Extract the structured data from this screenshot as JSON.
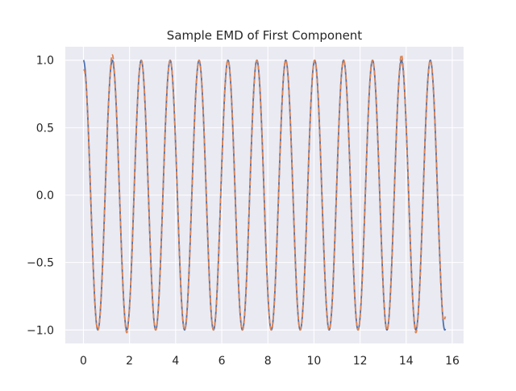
{
  "chart_data": {
    "type": "line",
    "title": "Sample EMD of First Component",
    "xlabel": "",
    "ylabel": "",
    "xlim": [
      -0.785,
      16.49
    ],
    "ylim": [
      -1.1,
      1.1
    ],
    "grid": true,
    "legend": "none",
    "x_ticks": [
      0,
      2,
      4,
      6,
      8,
      10,
      12,
      14,
      16
    ],
    "x_tick_labels": [
      "0",
      "2",
      "4",
      "6",
      "8",
      "10",
      "12",
      "14",
      "16"
    ],
    "y_ticks": [
      -1.0,
      -0.5,
      0.0,
      0.5,
      1.0
    ],
    "y_tick_labels": [
      "−1.0",
      "−0.5",
      "0.0",
      "0.5",
      "1.0"
    ],
    "series": [
      {
        "color": "#4c72b0",
        "style": "solid",
        "function": "cos",
        "amplitude": 1.0,
        "period": 1.254,
        "phase": 0.0,
        "x_range": [
          0,
          15.7
        ]
      },
      {
        "color": "#dd8452",
        "style": "dashed",
        "function": "cos",
        "amplitude": 1.0,
        "period": 1.254,
        "phase": 0.0,
        "x_range": [
          0,
          15.7
        ],
        "overshoot_points": [
          {
            "x": 0.0,
            "y": 0.93
          },
          {
            "x": 1.254,
            "y": 1.04
          },
          {
            "x": 1.88,
            "y": -1.02
          },
          {
            "x": 13.79,
            "y": 1.04
          },
          {
            "x": 14.42,
            "y": -1.02
          },
          {
            "x": 15.7,
            "y": -0.9
          }
        ]
      }
    ]
  },
  "colors": {
    "plot_background": "#eaeaf2",
    "grid": "#ffffff",
    "text": "#262626"
  }
}
